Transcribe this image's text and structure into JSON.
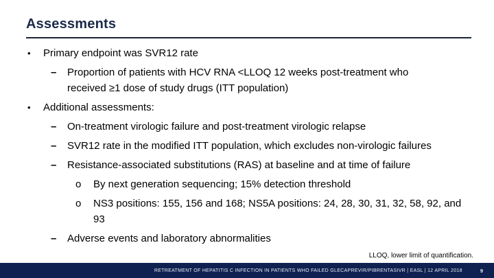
{
  "slide": {
    "title": "Assessments",
    "bullets": [
      {
        "level": 1,
        "marker": "•",
        "text": "Primary endpoint was SVR12 rate"
      },
      {
        "level": 2,
        "marker": "–",
        "text": "Proportion of patients with HCV RNA <LLOQ 12 weeks post-treatment who received ≥1 dose of study drugs (ITT population)"
      },
      {
        "level": 1,
        "marker": "•",
        "text": "Additional assessments:"
      },
      {
        "level": 2,
        "marker": "–",
        "text": "On-treatment virologic failure and post-treatment virologic relapse"
      },
      {
        "level": 2,
        "marker": "–",
        "text": "SVR12 rate in the modified ITT population, which excludes non-virologic failures"
      },
      {
        "level": 2,
        "marker": "–",
        "text": "Resistance-associated substitutions (RAS) at baseline and at time of failure"
      },
      {
        "level": 3,
        "marker": "o",
        "text": "By next generation sequencing; 15% detection threshold"
      },
      {
        "level": 3,
        "marker": "o",
        "text": "NS3 positions: 155, 156 and 168; NS5A positions: 24, 28, 30, 31, 32, 58, 92, and 93"
      },
      {
        "level": 2,
        "marker": "–",
        "text": "Adverse events and laboratory abnormalities"
      }
    ],
    "footnote": "LLOQ, lower limit of quantification.",
    "footer": {
      "citation": "RETREATMENT OF HEPATITIS C INFECTION IN PATIENTS WHO FAILED GLECAPREVIR/PIBRENTASIVR | EASL | 12 APRIL 2018",
      "page_number": "9"
    },
    "colors": {
      "title_text": "#1b2a4a",
      "rule": "#1a2433",
      "body_text": "#000000",
      "footer_bar": "#0f2150",
      "footer_text": "#e8edf7"
    }
  }
}
